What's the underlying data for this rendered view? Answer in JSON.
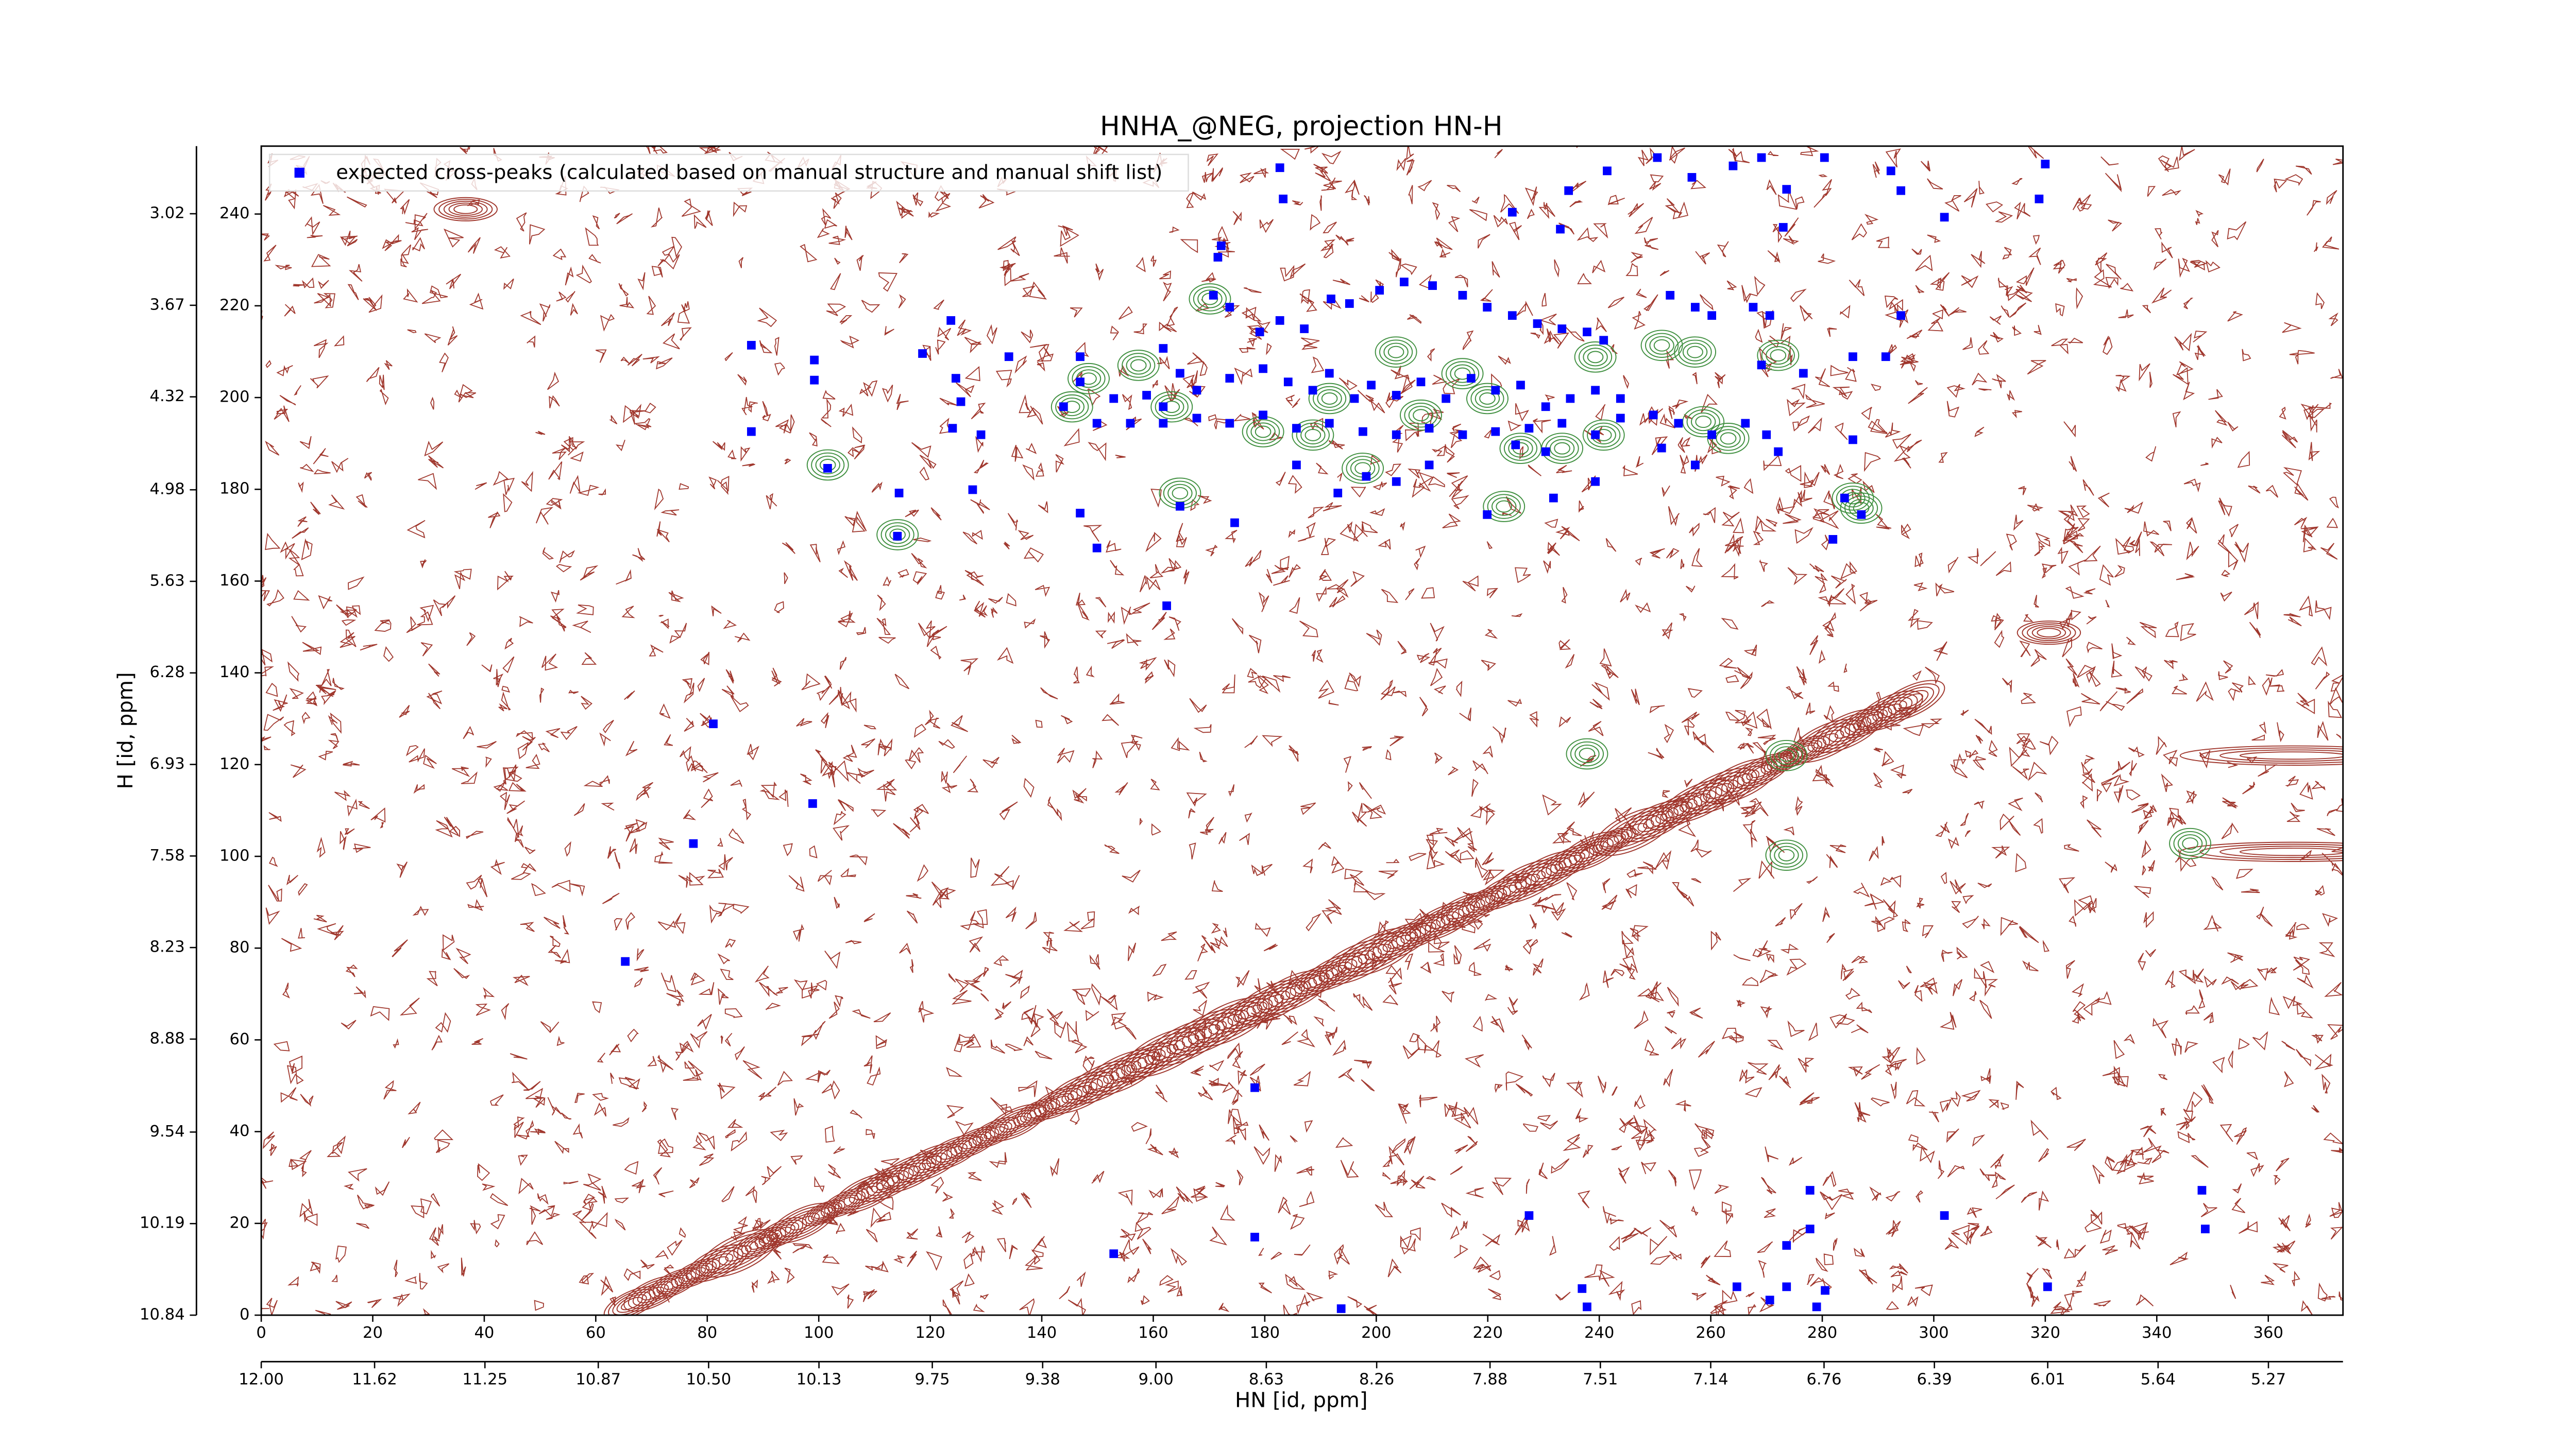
{
  "chart_data": {
    "type": "scatter",
    "title": "HNHA_@NEG, projection HN-H",
    "xlabel": "HN [id, ppm]",
    "ylabel": "H [id, ppm]",
    "legend": "upper left",
    "xlim": [
      0,
      373.4
    ],
    "xticks": [
      0,
      20,
      40,
      60,
      80,
      100,
      120,
      140,
      160,
      180,
      200,
      220,
      240,
      260,
      280,
      300,
      320,
      340,
      360
    ],
    "x2lim": [
      12.0,
      5.02
    ],
    "x2ticks": [
      {
        "value": 12,
        "label": "12.00"
      },
      11.62,
      11.25,
      10.87,
      {
        "value": 10.5,
        "label": "10.50"
      },
      10.13,
      9.75,
      9.38,
      {
        "value": 9,
        "label": "9.00"
      },
      8.63,
      8.26,
      7.88,
      7.51,
      7.14,
      6.76,
      6.39,
      6.01,
      5.64,
      5.27
    ],
    "ylim": [
      0,
      254.8
    ],
    "yticks": [
      0,
      20,
      40,
      60,
      80,
      100,
      120,
      140,
      160,
      180,
      200,
      220,
      240
    ],
    "y2lim": [
      10.84,
      2.54
    ],
    "y2ticks": [
      10.84,
      10.19,
      9.54,
      8.88,
      8.23,
      7.58,
      6.93,
      6.28,
      5.63,
      4.98,
      4.32,
      3.67,
      3.02
    ],
    "x": [
      182.7,
      241.4,
      250.4,
      256.6,
      264,
      269.1,
      280.4,
      292.3,
      320,
      318.9,
      294.1,
      301.9,
      273.6,
      273,
      234.5,
      233,
      224.4,
      183.3,
      172.2,
      171.6,
      170.8,
      173.7,
      182.7,
      179.1,
      187.1,
      191.9,
      195.2,
      200.6,
      205,
      210.1,
      215.5,
      219.9,
      224.4,
      228.9,
      233.3,
      237.8,
      240.8,
      252.7,
      257.2,
      260.2,
      267.6,
      270.6,
      285.5,
      291.4,
      294.1,
      276.6,
      269.1,
      123.7,
      118.6,
      134.1,
      146.9,
      161.8,
      164.8,
      167.8,
      173.7,
      179.7,
      184.2,
      188.6,
      191.6,
      196.1,
      199.1,
      203.6,
      208,
      212.5,
      217,
      221.4,
      225.9,
      230.4,
      234.8,
      239.3,
      243.8,
      146.9,
      152.9,
      158.8,
      161.8,
      143.9,
      149.9,
      155.9,
      161.8,
      167.8,
      173.7,
      179.7,
      185.7,
      191.6,
      197.6,
      203.6,
      209.5,
      215.5,
      221.4,
      227.4,
      233.3,
      239.3,
      243.8,
      249.7,
      254.2,
      260.2,
      266.2,
      124.6,
      125.5,
      124,
      129.1,
      99.2,
      99.2,
      87.9,
      87.9,
      101.6,
      114.4,
      127.6,
      114.1,
      146.9,
      149.9,
      164.8,
      174.6,
      185.7,
      193.1,
      198.2,
      203.6,
      209.5,
      219.9,
      225,
      230.4,
      231.8,
      239.3,
      251.2,
      257.2,
      270,
      272.1,
      284,
      285.5,
      287,
      281.9,
      81.1,
      98.9,
      77.5,
      65.3,
      178.2,
      152.9,
      178.2,
      193.7,
      227.4,
      236.9,
      237.8,
      277.8,
      277.8,
      273.6,
      273.6,
      264.7,
      270.6,
      280.5,
      301.9,
      320.4,
      348.1,
      348.7,
      162.4,
      279
    ],
    "series": [
      {
        "name": "expected cross-peaks (calculated based on manual structure and manual shift list)",
        "color": "#0000ff",
        "values": [
          250.1,
          249.4,
          252.3,
          248,
          250.5,
          252.3,
          252.3,
          249.4,
          250.9,
          243.3,
          245.1,
          239.3,
          245.4,
          237.1,
          245.1,
          236.7,
          240.4,
          243.3,
          233.1,
          230.6,
          222.3,
          219.7,
          216.8,
          214.3,
          215,
          221.5,
          220.5,
          223.4,
          225.2,
          224.4,
          222.3,
          219.7,
          217.9,
          216.1,
          215,
          214.3,
          212.5,
          222.3,
          219.7,
          217.9,
          219.7,
          217.9,
          208.9,
          208.9,
          217.9,
          205.3,
          207.1,
          216.8,
          209.6,
          208.9,
          208.9,
          210.7,
          205.3,
          201.6,
          204.2,
          206.3,
          203.4,
          201.6,
          205.3,
          199.8,
          202.7,
          200.5,
          203.4,
          199.8,
          204.2,
          201.6,
          202.7,
          198,
          199.8,
          201.6,
          199.8,
          203.4,
          199.8,
          200.5,
          198,
          198,
          194.4,
          194.4,
          194.4,
          195.5,
          194.4,
          196.2,
          193.3,
          194.4,
          192.6,
          191.9,
          193.3,
          191.9,
          192.6,
          193.3,
          194.4,
          191.9,
          195.5,
          196.2,
          194.4,
          191.9,
          194.4,
          204.2,
          199.1,
          193.3,
          191.9,
          208.2,
          203.8,
          211.4,
          192.6,
          184.6,
          179.2,
          179.9,
          169.8,
          174.8,
          167.2,
          176.3,
          172.7,
          185.3,
          179.2,
          182.8,
          181.7,
          185.3,
          174.5,
          189.7,
          188.2,
          178.1,
          181.7,
          189,
          185.3,
          191.9,
          188.2,
          178.1,
          190.8,
          174.5,
          169.1,
          128.9,
          111.5,
          102.8,
          77.1,
          49.6,
          13.4,
          17,
          1.4,
          21.7,
          5.8,
          1.8,
          27.2,
          18.8,
          15.2,
          6.2,
          6.2,
          3.3,
          5.4,
          21.7,
          6.2,
          27.2,
          18.8,
          154.6,
          1.8
        ]
      }
    ]
  }
}
